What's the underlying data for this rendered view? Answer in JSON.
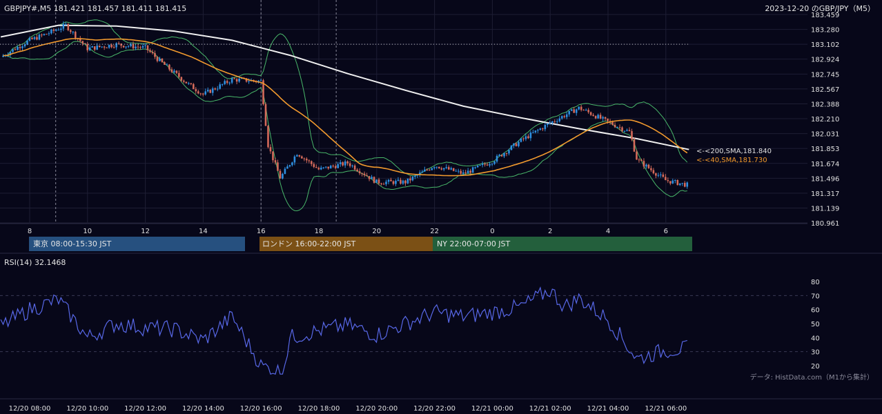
{
  "header": {
    "symbol_info": "GBPJPY#,M5 181.421 181.457 181.411 181.415",
    "title_right": "2023-12-20 のGBP/JPY（M5）"
  },
  "sessions": [
    {
      "label": "東京 08:00-15:30 JST",
      "color": "#26507f"
    },
    {
      "label": "ロンドン 16:00-22:00 JST",
      "color": "#7b5015"
    },
    {
      "label": "NY 22:00-07:00 JST",
      "color": "#235f3c"
    }
  ],
  "price_axis_labels": [
    "183.459",
    "183.280",
    "183.102",
    "182.924",
    "182.745",
    "182.567",
    "182.388",
    "182.210",
    "182.031",
    "181.853",
    "181.674",
    "181.496",
    "181.317",
    "181.139",
    "180.961"
  ],
  "hour_axis_labels": [
    "8",
    "10",
    "12",
    "14",
    "16",
    "18",
    "20",
    "22",
    "0",
    "2",
    "4",
    "6"
  ],
  "rsi": {
    "label": "RSI(14) 32.1468",
    "axis_labels": [
      "80",
      "70",
      "60",
      "50",
      "40",
      "30",
      "20"
    ],
    "level_values": [
      70,
      30
    ]
  },
  "date_axis_labels": [
    "12/20 08:00",
    "12/20 10:00",
    "12/20 12:00",
    "12/20 14:00",
    "12/20 16:00",
    "12/20 18:00",
    "12/20 20:00",
    "12/20 22:00",
    "12/21 00:00",
    "12/21 02:00",
    "12/21 04:00",
    "12/21 06:00"
  ],
  "source_note": "データ: HistData.com（M1から集計）",
  "indicator_tags": {
    "sma200": "<-<200,SMA,181.840",
    "sma40": "<-<40,SMA,181.730"
  },
  "colors": {
    "background": "#070719",
    "bull": "#2e8fe0",
    "bear": "#d46a5a",
    "sma200": "#f0f0f0",
    "sma40": "#f29a2e",
    "bollinger": "#49b86a",
    "rsi": "#5868e8",
    "grid": "#1e1e34"
  },
  "chart_data": {
    "type": "candlestick",
    "timeframe": "M5",
    "x_axis": "time (JST), 2023-12-20 07:00 to 2023-12-21 07:00",
    "ylim": [
      180.961,
      183.459
    ],
    "last_close": 181.415,
    "sma200_last": 181.84,
    "sma40_last": 181.73,
    "reference_line": 183.102,
    "price_path_hourly": [
      {
        "t": "07:00",
        "v": 182.95
      },
      {
        "t": "08:00",
        "v": 183.15
      },
      {
        "t": "08:45",
        "v": 183.25
      },
      {
        "t": "09:15",
        "v": 183.33
      },
      {
        "t": "10:00",
        "v": 183.05
      },
      {
        "t": "11:00",
        "v": 183.1
      },
      {
        "t": "12:00",
        "v": 183.06
      },
      {
        "t": "12:30",
        "v": 182.9
      },
      {
        "t": "13:30",
        "v": 182.62
      },
      {
        "t": "14:00",
        "v": 182.5
      },
      {
        "t": "15:00",
        "v": 182.68
      },
      {
        "t": "16:00",
        "v": 182.66
      },
      {
        "t": "16:15",
        "v": 181.88
      },
      {
        "t": "16:40",
        "v": 181.5
      },
      {
        "t": "17:15",
        "v": 181.8
      },
      {
        "t": "18:00",
        "v": 181.6
      },
      {
        "t": "19:00",
        "v": 181.68
      },
      {
        "t": "20:00",
        "v": 181.45
      },
      {
        "t": "21:00",
        "v": 181.45
      },
      {
        "t": "22:00",
        "v": 181.65
      },
      {
        "t": "23:00",
        "v": 181.55
      },
      {
        "t": "00:00",
        "v": 181.7
      },
      {
        "t": "01:00",
        "v": 181.95
      },
      {
        "t": "02:00",
        "v": 182.16
      },
      {
        "t": "03:00",
        "v": 182.34
      },
      {
        "t": "04:00",
        "v": 182.17
      },
      {
        "t": "04:45",
        "v": 182.05
      },
      {
        "t": "05:00",
        "v": 181.72
      },
      {
        "t": "06:00",
        "v": 181.47
      },
      {
        "t": "06:45",
        "v": 181.415
      }
    ],
    "rsi_path_hourly": [
      {
        "t": "07:00",
        "v": 48
      },
      {
        "t": "08:00",
        "v": 60
      },
      {
        "t": "09:00",
        "v": 67
      },
      {
        "t": "10:00",
        "v": 40
      },
      {
        "t": "11:00",
        "v": 50
      },
      {
        "t": "12:00",
        "v": 47
      },
      {
        "t": "13:00",
        "v": 46
      },
      {
        "t": "14:00",
        "v": 38
      },
      {
        "t": "15:00",
        "v": 55
      },
      {
        "t": "16:00",
        "v": 20
      },
      {
        "t": "16:45",
        "v": 15
      },
      {
        "t": "17:00",
        "v": 40
      },
      {
        "t": "18:00",
        "v": 45
      },
      {
        "t": "19:00",
        "v": 49
      },
      {
        "t": "20:00",
        "v": 42
      },
      {
        "t": "21:00",
        "v": 50
      },
      {
        "t": "22:00",
        "v": 58
      },
      {
        "t": "23:00",
        "v": 55
      },
      {
        "t": "00:00",
        "v": 58
      },
      {
        "t": "01:00",
        "v": 62
      },
      {
        "t": "02:00",
        "v": 74
      },
      {
        "t": "02:30",
        "v": 62
      },
      {
        "t": "03:00",
        "v": 68
      },
      {
        "t": "04:00",
        "v": 53
      },
      {
        "t": "05:00",
        "v": 25
      },
      {
        "t": "06:00",
        "v": 31
      },
      {
        "t": "06:45",
        "v": 32.15
      }
    ]
  }
}
